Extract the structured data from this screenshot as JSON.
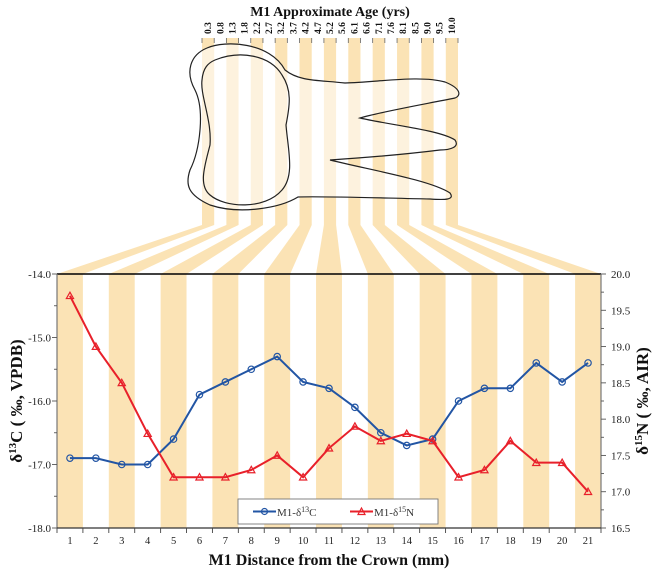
{
  "chart_data": {
    "type": "line",
    "title": "M1 Approximate Age (yrs)",
    "xlabel": "M1 Distance from the Crown (mm)",
    "ylabel_left": "δ13C ( ‰, VPDB)",
    "ylabel_right": "δ15N ( ‰, AIR)",
    "x": [
      1,
      2,
      3,
      4,
      5,
      6,
      7,
      8,
      9,
      10,
      11,
      12,
      13,
      14,
      15,
      16,
      17,
      18,
      19,
      20,
      21
    ],
    "age_labels": [
      "0.3",
      "0.8",
      "1.3",
      "1.8",
      "2.2",
      "2.7",
      "3.2",
      "3.7",
      "4.2",
      "4.7",
      "5.2",
      "5.6",
      "6.1",
      "6.6",
      "7.1",
      "7.6",
      "8.1",
      "8.5",
      "9.0",
      "9.5",
      "10.0"
    ],
    "ylim_left": [
      -18.0,
      -14.0
    ],
    "yticks_left": [
      "-14.0",
      "-15.0",
      "-16.0",
      "-17.0",
      "-18.0"
    ],
    "ylim_right": [
      16.5,
      20.0
    ],
    "yticks_right": [
      "20.0",
      "19.5",
      "19.0",
      "18.5",
      "18.0",
      "17.5",
      "17.0",
      "16.5"
    ],
    "series": [
      {
        "name": "M1-δ13C",
        "axis": "left",
        "color": "#2255A4",
        "marker": "circle",
        "values": [
          -16.9,
          -16.9,
          -17.0,
          -17.0,
          -16.6,
          -15.9,
          -15.7,
          -15.5,
          -15.3,
          -15.7,
          -15.8,
          -16.1,
          -16.5,
          -16.7,
          -16.6,
          -16.0,
          -15.8,
          -15.8,
          -15.4,
          -15.7,
          -15.4
        ]
      },
      {
        "name": "M1-δ15N",
        "axis": "right",
        "color": "#E8202A",
        "marker": "triangle",
        "values": [
          19.7,
          19.0,
          18.5,
          17.8,
          17.2,
          17.2,
          17.2,
          17.3,
          17.5,
          17.2,
          17.6,
          17.9,
          17.7,
          17.8,
          17.7,
          17.2,
          17.3,
          17.7,
          17.4,
          17.4,
          17.0
        ]
      }
    ],
    "legend_position": "bottom-center inside",
    "stripe_color": "#FBE3B5",
    "grid": false
  },
  "labels": {
    "title": "M1 Approximate Age (yrs)",
    "xlabel": "M1 Distance from the Crown (mm)",
    "legend_c_prefix": "M1-δ",
    "legend_c_sup": "13",
    "legend_c_suffix": "C",
    "legend_n_prefix": "M1-δ",
    "legend_n_sup": "15",
    "legend_n_suffix": "N",
    "ylabel_left_prefix": "δ",
    "ylabel_left_sup": "13",
    "ylabel_left_suffix": "C ( ‰, VPDB)",
    "ylabel_right_prefix": "δ",
    "ylabel_right_sup": "15",
    "ylabel_right_suffix": "N ( ‰, AIR)"
  }
}
